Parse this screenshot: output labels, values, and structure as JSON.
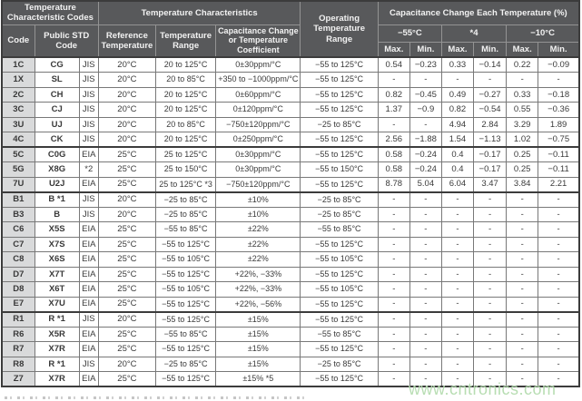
{
  "header": {
    "group_codes": "Temperature Characteristic Codes",
    "group_characteristics": "Temperature Characteristics",
    "operating_range": "Operating Temperature Range",
    "group_cap_change": "Capacitance Change Each Temperature (%)",
    "code": "Code",
    "public_std_code": "Public STD Code",
    "reference_temperature": "Reference Temperature",
    "temperature_range": "Temperature Range",
    "cap_change_or_coeff": "Capacitance Change or Temperature Coefficient",
    "temp_groups": [
      "−55°C",
      "*4",
      "−10°C"
    ],
    "max": "Max.",
    "min": "Min."
  },
  "rows": [
    {
      "code": "1C",
      "public": "CG",
      "std": "JIS",
      "ref": "20°C",
      "range": "20 to 125°C",
      "coeff": "0±30ppm/°C",
      "op": "−55 to 125°C",
      "vals": [
        "0.54",
        "−0.23",
        "0.33",
        "−0.14",
        "0.22",
        "−0.09"
      ],
      "group_start": true
    },
    {
      "code": "1X",
      "public": "SL",
      "std": "JIS",
      "ref": "20°C",
      "range": "20 to 85°C",
      "coeff": "+350 to −1000ppm/°C",
      "op": "−55 to 125°C",
      "vals": [
        "-",
        "-",
        "-",
        "-",
        "-",
        "-"
      ],
      "group_start": false
    },
    {
      "code": "2C",
      "public": "CH",
      "std": "JIS",
      "ref": "20°C",
      "range": "20 to 125°C",
      "coeff": "0±60ppm/°C",
      "op": "−55 to 125°C",
      "vals": [
        "0.82",
        "−0.45",
        "0.49",
        "−0.27",
        "0.33",
        "−0.18"
      ],
      "group_start": false
    },
    {
      "code": "3C",
      "public": "CJ",
      "std": "JIS",
      "ref": "20°C",
      "range": "20 to 125°C",
      "coeff": "0±120ppm/°C",
      "op": "−55 to 125°C",
      "vals": [
        "1.37",
        "−0.9",
        "0.82",
        "−0.54",
        "0.55",
        "−0.36"
      ],
      "group_start": false
    },
    {
      "code": "3U",
      "public": "UJ",
      "std": "JIS",
      "ref": "20°C",
      "range": "20 to 85°C",
      "coeff": "−750±120ppm/°C",
      "op": "−25 to 85°C",
      "vals": [
        "-",
        "-",
        "4.94",
        "2.84",
        "3.29",
        "1.89"
      ],
      "group_start": false
    },
    {
      "code": "4C",
      "public": "CK",
      "std": "JIS",
      "ref": "20°C",
      "range": "20 to 125°C",
      "coeff": "0±250ppm/°C",
      "op": "−55 to 125°C",
      "vals": [
        "2.56",
        "−1.88",
        "1.54",
        "−1.13",
        "1.02",
        "−0.75"
      ],
      "group_start": false
    },
    {
      "code": "5C",
      "public": "C0G",
      "std": "EIA",
      "ref": "25°C",
      "range": "25 to 125°C",
      "coeff": "0±30ppm/°C",
      "op": "−55 to 125°C",
      "vals": [
        "0.58",
        "−0.24",
        "0.4",
        "−0.17",
        "0.25",
        "−0.11"
      ],
      "group_start": true
    },
    {
      "code": "5G",
      "public": "X8G",
      "std": "*2",
      "ref": "25°C",
      "range": "25 to 150°C",
      "coeff": "0±30ppm/°C",
      "op": "−55 to 150°C",
      "vals": [
        "0.58",
        "−0.24",
        "0.4",
        "−0.17",
        "0.25",
        "−0.11"
      ],
      "group_start": false
    },
    {
      "code": "7U",
      "public": "U2J",
      "std": "EIA",
      "ref": "25°C",
      "range": "25 to 125°C *3",
      "coeff": "−750±120ppm/°C",
      "op": "−55 to 125°C",
      "vals": [
        "8.78",
        "5.04",
        "6.04",
        "3.47",
        "3.84",
        "2.21"
      ],
      "group_start": false
    },
    {
      "code": "B1",
      "public": "B *1",
      "std": "JIS",
      "ref": "20°C",
      "range": "−25 to 85°C",
      "coeff": "±10%",
      "op": "−25 to 85°C",
      "vals": [
        "-",
        "-",
        "-",
        "-",
        "-",
        "-"
      ],
      "group_start": true
    },
    {
      "code": "B3",
      "public": "B",
      "std": "JIS",
      "ref": "20°C",
      "range": "−25 to 85°C",
      "coeff": "±10%",
      "op": "−25 to 85°C",
      "vals": [
        "-",
        "-",
        "-",
        "-",
        "-",
        "-"
      ],
      "group_start": false
    },
    {
      "code": "C6",
      "public": "X5S",
      "std": "EIA",
      "ref": "25°C",
      "range": "−55 to 85°C",
      "coeff": "±22%",
      "op": "−55 to 85°C",
      "vals": [
        "-",
        "-",
        "-",
        "-",
        "-",
        "-"
      ],
      "group_start": false
    },
    {
      "code": "C7",
      "public": "X7S",
      "std": "EIA",
      "ref": "25°C",
      "range": "−55 to 125°C",
      "coeff": "±22%",
      "op": "−55 to 125°C",
      "vals": [
        "-",
        "-",
        "-",
        "-",
        "-",
        "-"
      ],
      "group_start": false
    },
    {
      "code": "C8",
      "public": "X6S",
      "std": "EIA",
      "ref": "25°C",
      "range": "−55 to 105°C",
      "coeff": "±22%",
      "op": "−55 to 105°C",
      "vals": [
        "-",
        "-",
        "-",
        "-",
        "-",
        "-"
      ],
      "group_start": false
    },
    {
      "code": "D7",
      "public": "X7T",
      "std": "EIA",
      "ref": "25°C",
      "range": "−55 to 125°C",
      "coeff": "+22%, −33%",
      "op": "−55 to 125°C",
      "vals": [
        "-",
        "-",
        "-",
        "-",
        "-",
        "-"
      ],
      "group_start": false
    },
    {
      "code": "D8",
      "public": "X6T",
      "std": "EIA",
      "ref": "25°C",
      "range": "−55 to 105°C",
      "coeff": "+22%, −33%",
      "op": "−55 to 105°C",
      "vals": [
        "-",
        "-",
        "-",
        "-",
        "-",
        "-"
      ],
      "group_start": false
    },
    {
      "code": "E7",
      "public": "X7U",
      "std": "EIA",
      "ref": "25°C",
      "range": "−55 to 125°C",
      "coeff": "+22%, −56%",
      "op": "−55 to 125°C",
      "vals": [
        "-",
        "-",
        "-",
        "-",
        "-",
        "-"
      ],
      "group_start": false
    },
    {
      "code": "R1",
      "public": "R *1",
      "std": "JIS",
      "ref": "20°C",
      "range": "−55 to 125°C",
      "coeff": "±15%",
      "op": "−55 to 125°C",
      "vals": [
        "-",
        "-",
        "-",
        "-",
        "-",
        "-"
      ],
      "group_start": true
    },
    {
      "code": "R6",
      "public": "X5R",
      "std": "EIA",
      "ref": "25°C",
      "range": "−55 to 85°C",
      "coeff": "±15%",
      "op": "−55 to 85°C",
      "vals": [
        "-",
        "-",
        "-",
        "-",
        "-",
        "-"
      ],
      "group_start": false
    },
    {
      "code": "R7",
      "public": "X7R",
      "std": "EIA",
      "ref": "25°C",
      "range": "−55 to 125°C",
      "coeff": "±15%",
      "op": "−55 to 125°C",
      "vals": [
        "-",
        "-",
        "-",
        "-",
        "-",
        "-"
      ],
      "group_start": false
    },
    {
      "code": "R8",
      "public": "R *1",
      "std": "JIS",
      "ref": "20°C",
      "range": "−25 to 85°C",
      "coeff": "±15%",
      "op": "−25 to 85°C",
      "vals": [
        "-",
        "-",
        "-",
        "-",
        "-",
        "-"
      ],
      "group_start": false
    },
    {
      "code": "Z7",
      "public": "X7R",
      "std": "EIA",
      "ref": "25°C",
      "range": "−55 to 125°C",
      "coeff": "±15% *5",
      "op": "−55 to 125°C",
      "vals": [
        "-",
        "-",
        "-",
        "-",
        "-",
        "-"
      ],
      "group_start": false
    }
  ],
  "colors": {
    "header_bg": "#58595b",
    "header_text": "#f2f2f2",
    "code_col_bg": "#d9dadb",
    "border_dark": "#3c3c3c",
    "watermark_green": "#b4dcae"
  },
  "watermark": "www.cntronics.com"
}
